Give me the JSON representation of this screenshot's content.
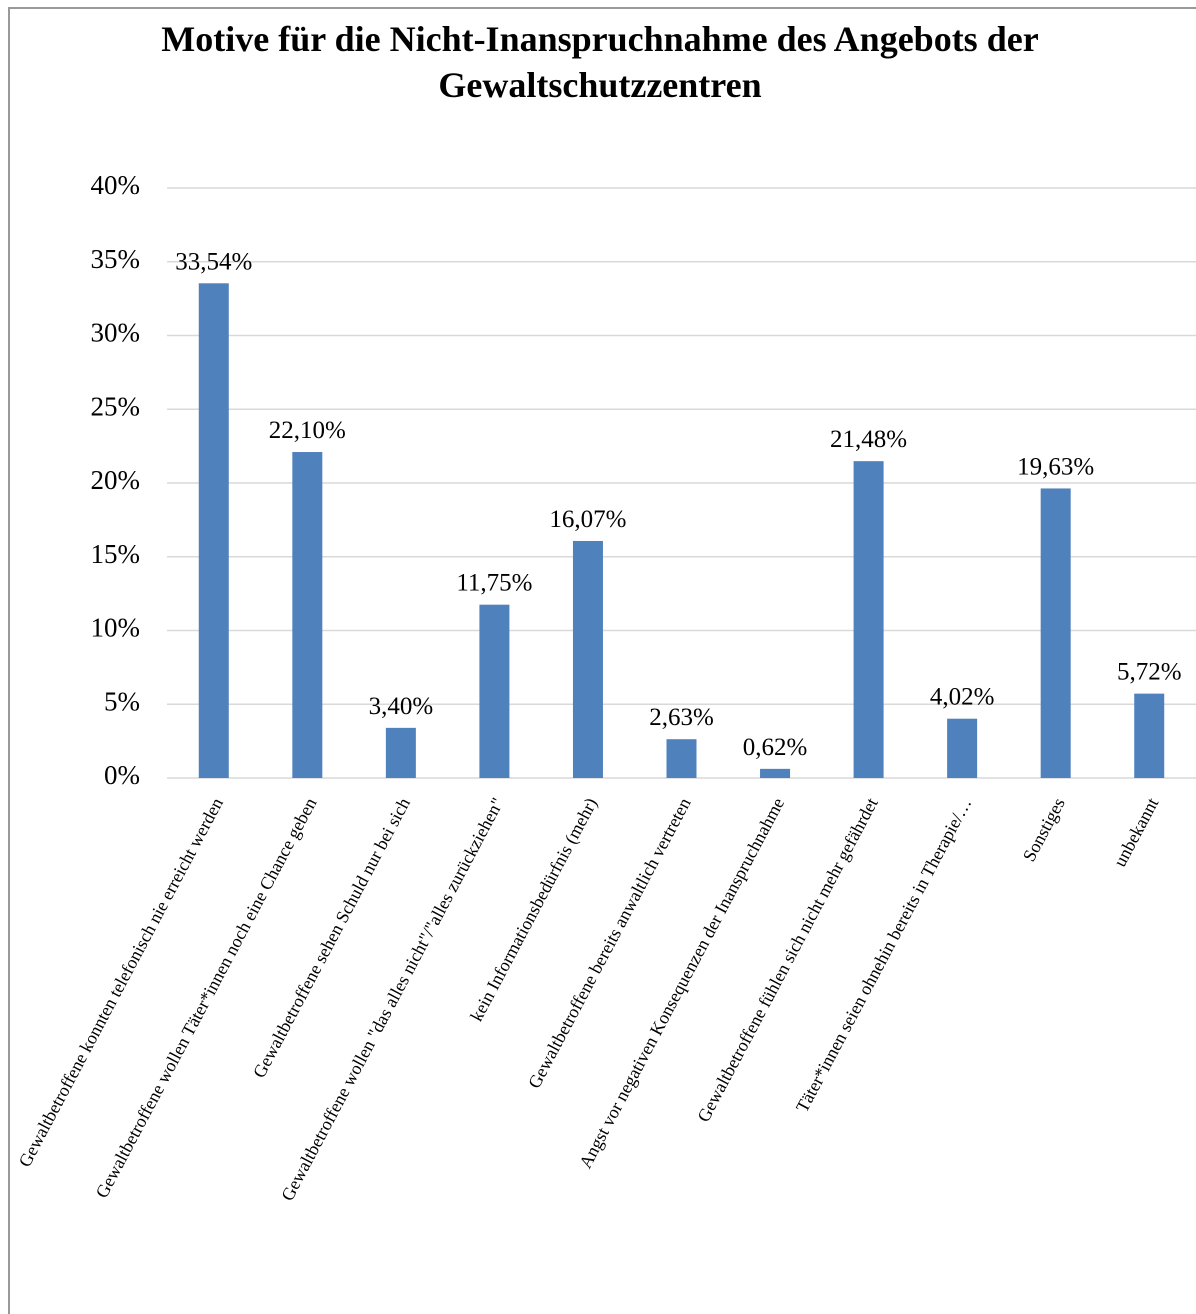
{
  "chart_data": {
    "type": "bar",
    "title": "Motive für die Nicht-Inanspruchnahme des Angebots der Gewaltschutzzentren",
    "categories": [
      "Gewaltbetroffene konnten telefonisch nie erreicht werden",
      "Gewaltbetroffene wollen Täter*innen noch eine Chance geben",
      "Gewaltbetroffene sehen Schuld nur bei sich",
      "Gewaltbetroffene wollen \"das alles nicht\"/\"alles zurückziehen\"",
      "kein Informationsbedürfnis (mehr)",
      "Gewaltbetroffene bereits anwaltlich vertreten",
      "Angst vor negativen Konsequenzen der Inanspruchnahme",
      "Gewaltbetroffene fühlen sich nicht mehr gefährdet",
      "Täter*innen seien ohnehin bereits in Therapie/…",
      "Sonstiges",
      "unbekannt"
    ],
    "values": [
      33.54,
      22.1,
      3.4,
      11.75,
      16.07,
      2.63,
      0.62,
      21.48,
      4.02,
      19.63,
      5.72
    ],
    "value_labels": [
      "33,54%",
      "22,10%",
      "3,40%",
      "11,75%",
      "16,07%",
      "2,63%",
      "0,62%",
      "21,48%",
      "4,02%",
      "19,63%",
      "5,72%"
    ],
    "color": "#4f81bd",
    "ylim": [
      0,
      40
    ],
    "yticks": [
      {
        "value": 0,
        "label": "0%"
      },
      {
        "value": 5,
        "label": "5%"
      },
      {
        "value": 10,
        "label": "10%"
      },
      {
        "value": 15,
        "label": "15%"
      },
      {
        "value": 20,
        "label": "20%"
      },
      {
        "value": 25,
        "label": "25%"
      },
      {
        "value": 30,
        "label": "30%"
      },
      {
        "value": 35,
        "label": "35%"
      },
      {
        "value": 40,
        "label": "40%"
      }
    ],
    "grid": true
  }
}
